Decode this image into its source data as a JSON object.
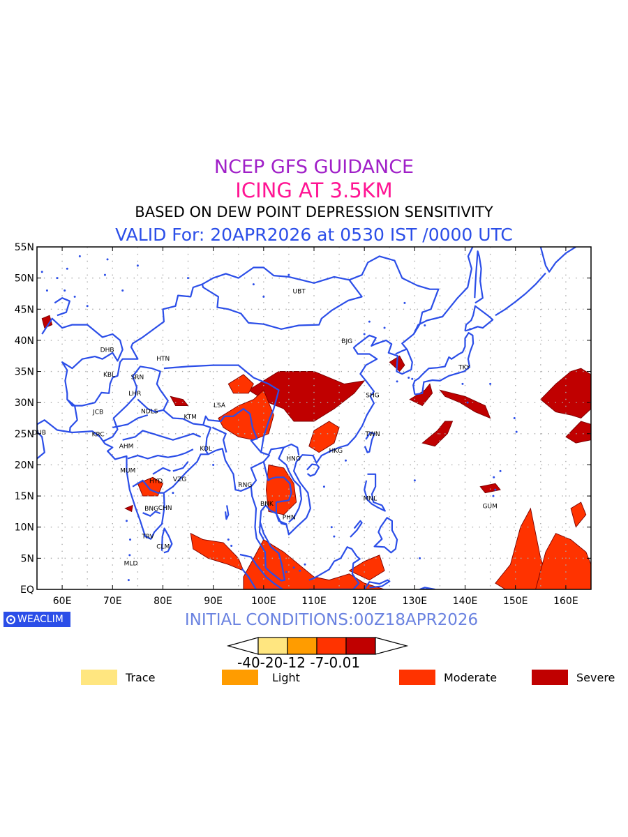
{
  "titles": {
    "line1": "NCEP GFS GUIDANCE",
    "line2": "ICING AT 3.5KM",
    "line3": "BASED ON DEW POINT DEPRESSION SENSITIVITY",
    "line4": "VALID For: 20APR2026 at 0530 IST /0000 UTC"
  },
  "initial_conditions": "INITIAL CONDITIONS:00Z18APR2026",
  "logo": {
    "text": "WEACLIM"
  },
  "colors": {
    "coast": "#2b4ee8",
    "trace": "#ffe680",
    "light": "#ff9c00",
    "moderate": "#ff3300",
    "severe": "#c00000",
    "title_purple": "#a020c8",
    "title_pink": "#ff1493",
    "title_blue": "#2b4ee8"
  },
  "map": {
    "lon_range": [
      55,
      165
    ],
    "lat_range": [
      0,
      55
    ],
    "lon_ticks": [
      "60E",
      "70E",
      "80E",
      "90E",
      "100E",
      "110E",
      "120E",
      "130E",
      "140E",
      "150E",
      "160E"
    ],
    "lat_ticks": [
      "EQ",
      "5N",
      "10N",
      "15N",
      "20N",
      "25N",
      "30N",
      "35N",
      "40N",
      "45N",
      "50N",
      "55N"
    ],
    "grid": "dotted",
    "stations": [
      {
        "code": "UBT",
        "lon": 106.9,
        "lat": 47.9
      },
      {
        "code": "BJG",
        "lon": 116.4,
        "lat": 39.9
      },
      {
        "code": "DHB",
        "lon": 68.8,
        "lat": 38.5
      },
      {
        "code": "HTN",
        "lon": 79.9,
        "lat": 37.1
      },
      {
        "code": "KBL",
        "lon": 69.2,
        "lat": 34.5
      },
      {
        "code": "SRN",
        "lon": 74.8,
        "lat": 34.1
      },
      {
        "code": "TKY",
        "lon": 139.7,
        "lat": 35.7
      },
      {
        "code": "LHR",
        "lon": 74.3,
        "lat": 31.5
      },
      {
        "code": "LSA",
        "lon": 91.1,
        "lat": 29.6
      },
      {
        "code": "SHG",
        "lon": 121.5,
        "lat": 31.2
      },
      {
        "code": "JCB",
        "lon": 67.0,
        "lat": 28.5
      },
      {
        "code": "NDLS",
        "lon": 77.2,
        "lat": 28.6
      },
      {
        "code": "KTM",
        "lon": 85.3,
        "lat": 27.7
      },
      {
        "code": "DUB",
        "lon": 55.3,
        "lat": 25.2
      },
      {
        "code": "KRC",
        "lon": 67.0,
        "lat": 24.9
      },
      {
        "code": "TWN",
        "lon": 121.5,
        "lat": 25.0
      },
      {
        "code": "AHM",
        "lon": 72.6,
        "lat": 23.0
      },
      {
        "code": "KOL",
        "lon": 88.4,
        "lat": 22.6
      },
      {
        "code": "HKG",
        "lon": 114.2,
        "lat": 22.3
      },
      {
        "code": "HNO",
        "lon": 105.8,
        "lat": 21.0
      },
      {
        "code": "MUM",
        "lon": 72.9,
        "lat": 19.1
      },
      {
        "code": "HYD",
        "lon": 78.5,
        "lat": 17.4
      },
      {
        "code": "VZG",
        "lon": 83.2,
        "lat": 17.7
      },
      {
        "code": "RNG",
        "lon": 96.2,
        "lat": 16.8
      },
      {
        "code": "MNL",
        "lon": 121.0,
        "lat": 14.6
      },
      {
        "code": "BNK",
        "lon": 100.5,
        "lat": 13.8
      },
      {
        "code": "GUM",
        "lon": 144.8,
        "lat": 13.4
      },
      {
        "code": "BNG",
        "lon": 77.6,
        "lat": 13.0
      },
      {
        "code": "CHN",
        "lon": 80.3,
        "lat": 13.1
      },
      {
        "code": "PHN",
        "lon": 104.9,
        "lat": 11.6
      },
      {
        "code": "TRV",
        "lon": 76.9,
        "lat": 8.5
      },
      {
        "code": "CLM",
        "lon": 79.9,
        "lat": 6.9
      },
      {
        "code": "MLD",
        "lon": 73.5,
        "lat": 4.2
      }
    ]
  },
  "colorbar": {
    "labels": "-40-20-12 -7-0.01",
    "bins": [
      "trace",
      "light",
      "moderate",
      "severe"
    ]
  },
  "legend": [
    {
      "label": "Trace",
      "color": "#ffe680"
    },
    {
      "label": "Light",
      "color": "#ff9c00"
    },
    {
      "label": "Moderate",
      "color": "#ff3300"
    },
    {
      "label": "Severe",
      "color": "#c00000"
    }
  ]
}
